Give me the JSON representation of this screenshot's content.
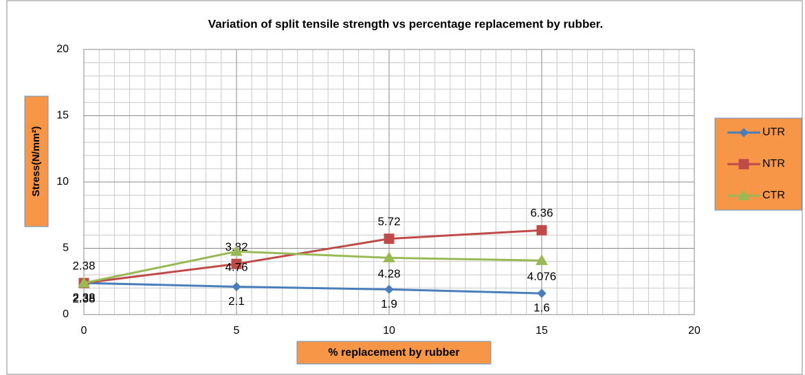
{
  "chart_data": {
    "type": "line",
    "title": "Variation of split tensile strength vs percentage replacement by rubber.",
    "xlabel": "%  replacement by rubber",
    "ylabel": "Stress(N/mm²)",
    "x": [
      0,
      5,
      10,
      15
    ],
    "series": [
      {
        "name": "UTR",
        "color": "#4a7ebb",
        "marker": "diamond",
        "values": [
          2.38,
          2.1,
          1.9,
          1.6
        ]
      },
      {
        "name": "NTR",
        "color": "#be4b48",
        "marker": "square",
        "values": [
          2.38,
          3.82,
          5.72,
          6.36
        ]
      },
      {
        "name": "CTR",
        "color": "#98b954",
        "marker": "triangle",
        "values": [
          2.38,
          4.76,
          4.28,
          4.076
        ]
      }
    ],
    "xlim": [
      0,
      20
    ],
    "xticks": [
      0,
      5,
      10,
      15,
      20
    ],
    "ylim": [
      0,
      20
    ],
    "yticks": [
      0,
      5,
      10,
      15,
      20
    ],
    "grid": true,
    "minor_grid": {
      "x": 0.5,
      "y": 1
    },
    "legend": "right"
  }
}
